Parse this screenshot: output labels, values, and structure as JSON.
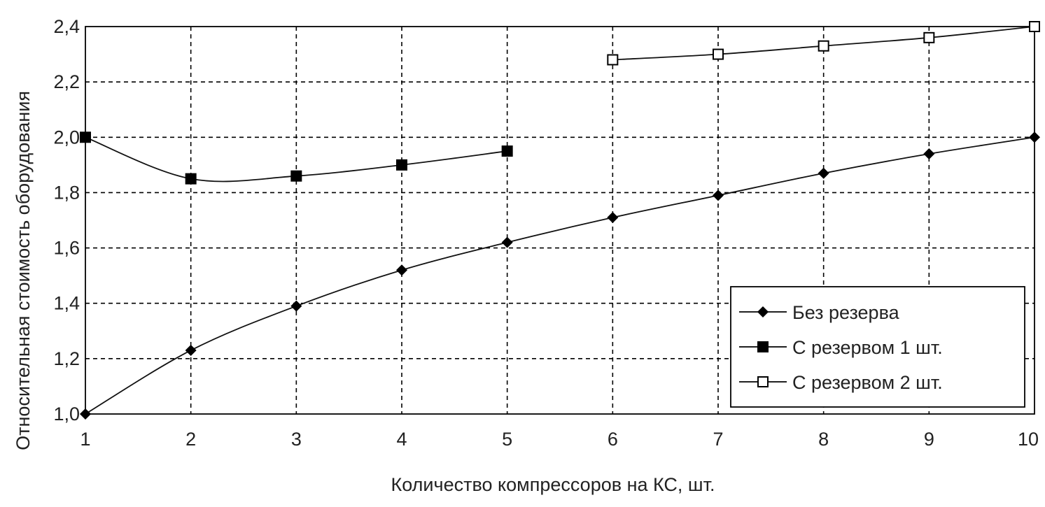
{
  "chart_data": {
    "type": "line",
    "title": "",
    "xlabel": "Количество компрессоров на КС, шт.",
    "ylabel": "Относительная стоимость оборудования",
    "x_ticks": [
      "1",
      "2",
      "3",
      "4",
      "5",
      "6",
      "7",
      "8",
      "9",
      "10"
    ],
    "y_ticks": [
      "1,0",
      "1,2",
      "1,4",
      "1,6",
      "1,8",
      "2,0",
      "2,2",
      "2,4"
    ],
    "xlim": [
      1,
      10
    ],
    "ylim": [
      1.0,
      2.4
    ],
    "grid": true,
    "legend_position": "bottom-right",
    "series": [
      {
        "name": "Без резерва",
        "marker": "diamond",
        "x": [
          1,
          2,
          3,
          4,
          5,
          6,
          7,
          8,
          9,
          10
        ],
        "y": [
          1.0,
          1.23,
          1.39,
          1.52,
          1.62,
          1.71,
          1.79,
          1.87,
          1.94,
          2.0
        ]
      },
      {
        "name": "С резервом 1 шт.",
        "marker": "square-filled",
        "x": [
          1,
          2,
          3,
          4,
          5
        ],
        "y": [
          2.0,
          1.85,
          1.86,
          1.9,
          1.95
        ]
      },
      {
        "name": "С резервом 2 шт.",
        "marker": "square-open",
        "x": [
          6,
          7,
          8,
          9,
          10
        ],
        "y": [
          2.28,
          2.3,
          2.33,
          2.36,
          2.4
        ]
      }
    ]
  }
}
